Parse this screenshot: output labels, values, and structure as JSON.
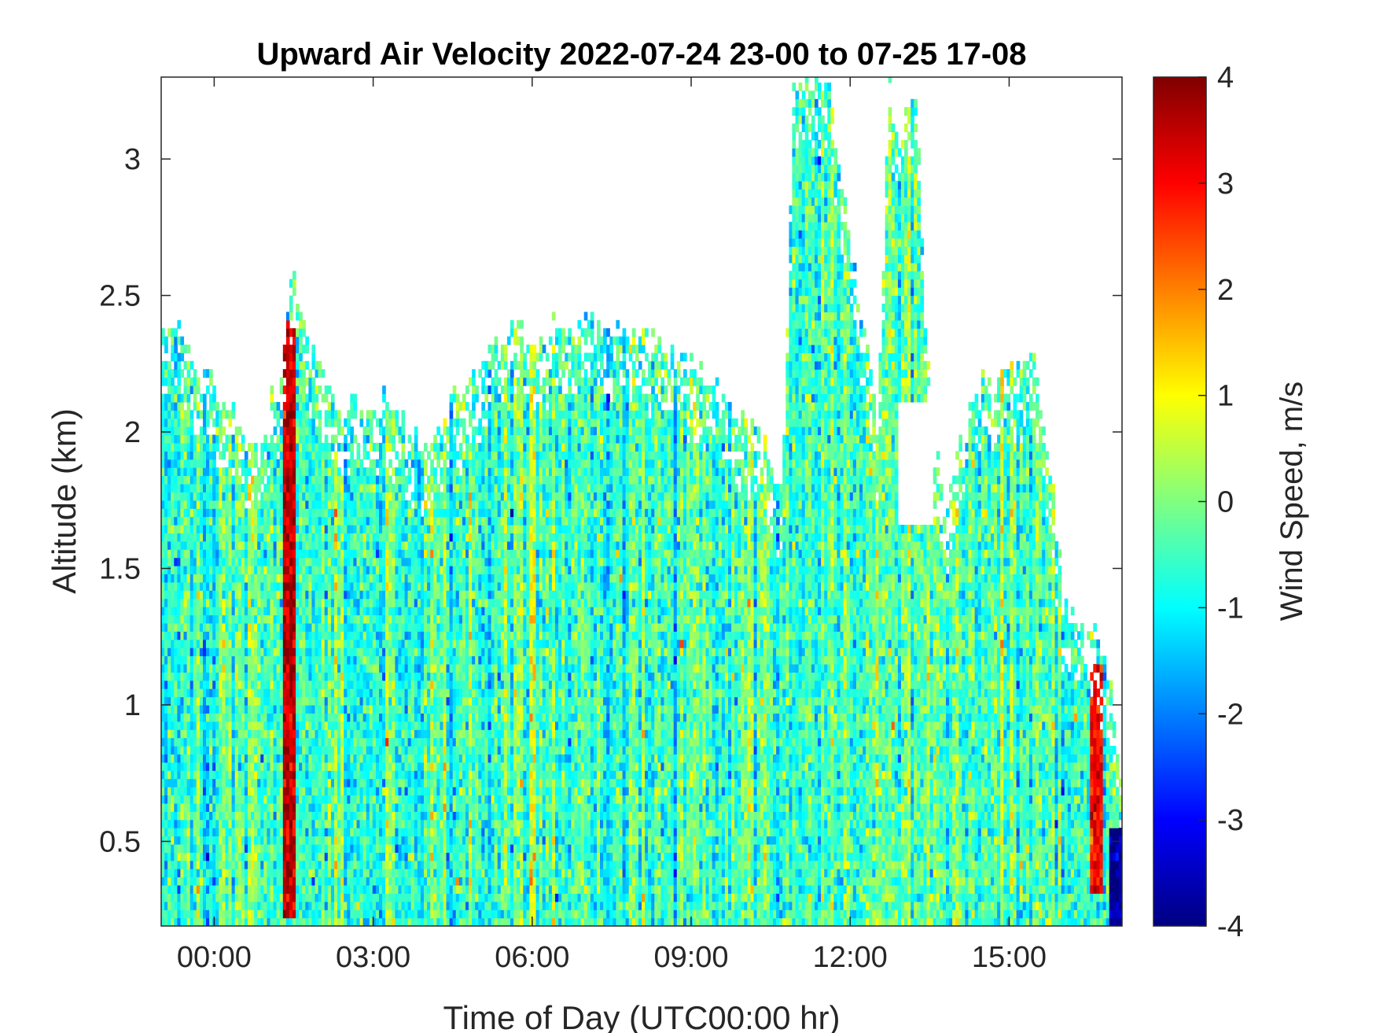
{
  "chart_data": {
    "type": "heatmap",
    "title": "Upward Air Velocity 2022-07-24 23-00 to 07-25 17-08",
    "xlabel": "Time of Day (UTC00:00 hr)",
    "ylabel": "Altitude (km)",
    "colorbar_label": "Wind Speed, m/s",
    "colormap": "jet",
    "x_unit": "hours relative to 2022-07-25 00:00 UTC",
    "xlim": [
      -1.0,
      17.13
    ],
    "ylim": [
      0.19,
      3.3
    ],
    "clim": [
      -4,
      4
    ],
    "x_ticks": [
      {
        "value": 0,
        "label": "00:00"
      },
      {
        "value": 3,
        "label": "03:00"
      },
      {
        "value": 6,
        "label": "06:00"
      },
      {
        "value": 9,
        "label": "09:00"
      },
      {
        "value": 12,
        "label": "12:00"
      },
      {
        "value": 15,
        "label": "15:00"
      }
    ],
    "y_ticks": [
      {
        "value": 0.5,
        "label": "0.5"
      },
      {
        "value": 1,
        "label": "1"
      },
      {
        "value": 1.5,
        "label": "1.5"
      },
      {
        "value": 2,
        "label": "2"
      },
      {
        "value": 2.5,
        "label": "2.5"
      },
      {
        "value": 3,
        "label": "3"
      }
    ],
    "colorbar_ticks": [
      {
        "value": 4,
        "label": "4"
      },
      {
        "value": 3,
        "label": "3"
      },
      {
        "value": 2,
        "label": "2"
      },
      {
        "value": 1,
        "label": "1"
      },
      {
        "value": 0,
        "label": "0"
      },
      {
        "value": -1,
        "label": "-1"
      },
      {
        "value": -2,
        "label": "-2"
      },
      {
        "value": -3,
        "label": "-3"
      },
      {
        "value": -4,
        "label": "-4"
      }
    ],
    "grid": false,
    "data_top_profile": {
      "description": "approximate top altitude (km) of valid data vs time (hours)",
      "time": [
        -1.0,
        -0.6,
        -0.2,
        0.3,
        0.8,
        1.2,
        1.45,
        1.8,
        2.3,
        2.8,
        3.3,
        3.6,
        4.0,
        4.5,
        5.0,
        5.5,
        6.0,
        6.6,
        7.2,
        7.8,
        8.5,
        9.2,
        9.8,
        10.3,
        10.7,
        10.9,
        11.1,
        11.5,
        11.9,
        12.2,
        12.5,
        12.7,
        12.9,
        13.2,
        13.5,
        13.8,
        14.2,
        14.6,
        15.0,
        15.4,
        15.8,
        16.0,
        16.3,
        16.6,
        16.9,
        17.13
      ],
      "top_km": [
        2.35,
        2.35,
        2.2,
        2.05,
        1.95,
        2.2,
        2.6,
        2.3,
        2.1,
        2.05,
        2.1,
        2.0,
        1.9,
        2.1,
        2.25,
        2.35,
        2.35,
        2.4,
        2.4,
        2.35,
        2.3,
        2.2,
        2.1,
        1.95,
        1.8,
        3.3,
        3.3,
        3.3,
        2.8,
        2.4,
        2.0,
        3.3,
        3.0,
        3.3,
        2.0,
        1.7,
        2.1,
        2.2,
        2.2,
        2.3,
        1.8,
        1.35,
        1.3,
        1.25,
        1.1,
        0.6
      ]
    },
    "features": [
      {
        "description": "strong updraft column",
        "time": 1.4,
        "alt_range_km": [
          0.2,
          2.4
        ],
        "value_ms": 3.5
      },
      {
        "description": "updraft region near end",
        "time": 16.6,
        "alt_range_km": [
          0.3,
          1.15
        ],
        "value_ms": 3.0
      },
      {
        "description": "downdraft near surface at end",
        "time": 17.0,
        "alt_range_km": [
          0.19,
          0.55
        ],
        "value_ms": -3.8
      },
      {
        "description": "data gap (no values)",
        "time": 13.2,
        "alt_range_km": [
          1.65,
          2.1
        ],
        "value_ms": null
      }
    ],
    "typical_value_ms": -0.5,
    "value_spread_ms": 0.8
  }
}
